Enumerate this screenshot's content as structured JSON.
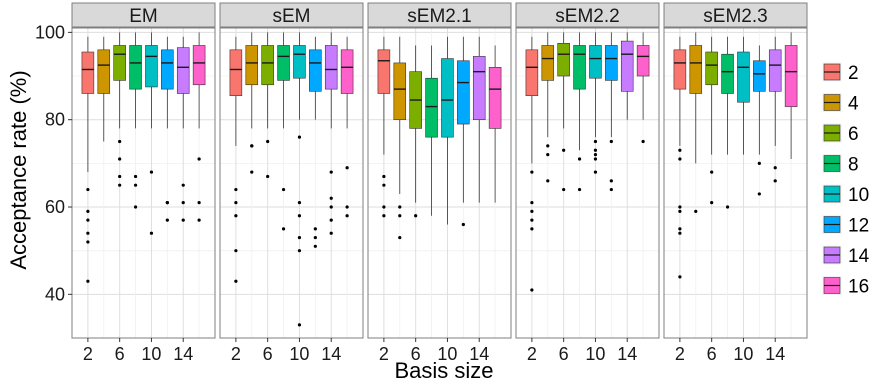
{
  "chart_data": {
    "type": "boxplot",
    "facet_variable": "method",
    "facets": [
      {
        "label": "EM",
        "boxes": [
          {
            "basis": 2,
            "q1": 86,
            "median": 91.5,
            "q3": 95.5,
            "low": 68,
            "high": 99,
            "outliers": [
              64,
              59,
              57,
              54,
              52,
              43
            ]
          },
          {
            "basis": 4,
            "q1": 86,
            "median": 92.5,
            "q3": 96,
            "low": 75,
            "high": 99,
            "outliers": []
          },
          {
            "basis": 6,
            "q1": 89,
            "median": 95,
            "q3": 97,
            "low": 78,
            "high": 100,
            "outliers": [
              75,
              71,
              67,
              65
            ]
          },
          {
            "basis": 8,
            "q1": 87,
            "median": 93,
            "q3": 97,
            "low": 78,
            "high": 100,
            "outliers": [
              67,
              65,
              60
            ]
          },
          {
            "basis": 10,
            "q1": 87.5,
            "median": 94.5,
            "q3": 97,
            "low": 78,
            "high": 100,
            "outliers": [
              68,
              54
            ]
          },
          {
            "basis": 12,
            "q1": 87,
            "median": 93,
            "q3": 96,
            "low": 78,
            "high": 99,
            "outliers": [
              61,
              61,
              57
            ]
          },
          {
            "basis": 14,
            "q1": 86,
            "median": 92,
            "q3": 96.5,
            "low": 78,
            "high": 99,
            "outliers": [
              65,
              61,
              57
            ]
          },
          {
            "basis": 16,
            "q1": 88,
            "median": 93,
            "q3": 97,
            "low": 78,
            "high": 100,
            "outliers": [
              71,
              61,
              57
            ]
          }
        ]
      },
      {
        "label": "sEM",
        "boxes": [
          {
            "basis": 2,
            "q1": 85.5,
            "median": 91.5,
            "q3": 96,
            "low": 74,
            "high": 99,
            "outliers": [
              64,
              61,
              58,
              50,
              43
            ]
          },
          {
            "basis": 4,
            "q1": 88,
            "median": 93,
            "q3": 97,
            "low": 78,
            "high": 100,
            "outliers": [
              74,
              74,
              68
            ]
          },
          {
            "basis": 6,
            "q1": 88,
            "median": 93,
            "q3": 97,
            "low": 78,
            "high": 100,
            "outliers": [
              75,
              67
            ]
          },
          {
            "basis": 8,
            "q1": 89,
            "median": 94.5,
            "q3": 97,
            "low": 78,
            "high": 100,
            "outliers": [
              64,
              55
            ]
          },
          {
            "basis": 10,
            "q1": 89.5,
            "median": 95,
            "q3": 97,
            "low": 80,
            "high": 100,
            "outliers": [
              76,
              61,
              58,
              53,
              50,
              33
            ]
          },
          {
            "basis": 12,
            "q1": 86.5,
            "median": 93,
            "q3": 96,
            "low": 80,
            "high": 99,
            "outliers": [
              55,
              53,
              51
            ]
          },
          {
            "basis": 14,
            "q1": 87,
            "median": 91.5,
            "q3": 97,
            "low": 78,
            "high": 100,
            "outliers": [
              68,
              62,
              60,
              57,
              54
            ]
          },
          {
            "basis": 16,
            "q1": 86,
            "median": 92,
            "q3": 96,
            "low": 78,
            "high": 99,
            "outliers": [
              69,
              60,
              58
            ]
          }
        ]
      },
      {
        "label": "sEM2.1",
        "boxes": [
          {
            "basis": 2,
            "q1": 86,
            "median": 93.5,
            "q3": 96,
            "low": 72,
            "high": 99,
            "outliers": [
              67,
              65,
              60,
              58
            ]
          },
          {
            "basis": 4,
            "q1": 80,
            "median": 87,
            "q3": 93,
            "low": 63,
            "high": 99,
            "outliers": [
              60,
              58,
              53
            ]
          },
          {
            "basis": 6,
            "q1": 78,
            "median": 84.5,
            "q3": 91,
            "low": 61,
            "high": 97,
            "outliers": [
              58
            ]
          },
          {
            "basis": 8,
            "q1": 76,
            "median": 83,
            "q3": 89.5,
            "low": 58,
            "high": 97,
            "outliers": []
          },
          {
            "basis": 10,
            "q1": 76,
            "median": 84.5,
            "q3": 94,
            "low": 56,
            "high": 99,
            "outliers": []
          },
          {
            "basis": 12,
            "q1": 79,
            "median": 88.5,
            "q3": 93.5,
            "low": 61,
            "high": 99,
            "outliers": [
              56
            ]
          },
          {
            "basis": 14,
            "q1": 80,
            "median": 91,
            "q3": 94.5,
            "low": 61,
            "high": 99,
            "outliers": []
          },
          {
            "basis": 16,
            "q1": 78,
            "median": 87,
            "q3": 92,
            "low": 61,
            "high": 97,
            "outliers": []
          }
        ]
      },
      {
        "label": "sEM2.2",
        "boxes": [
          {
            "basis": 2,
            "q1": 85.5,
            "median": 92,
            "q3": 96,
            "low": 70,
            "high": 99,
            "outliers": [
              68,
              61,
              59,
              57,
              55,
              41
            ]
          },
          {
            "basis": 4,
            "q1": 89,
            "median": 94,
            "q3": 97,
            "low": 76,
            "high": 100,
            "outliers": [
              74,
              72,
              66
            ]
          },
          {
            "basis": 6,
            "q1": 90,
            "median": 95,
            "q3": 97.5,
            "low": 78,
            "high": 100,
            "outliers": [
              73,
              64
            ]
          },
          {
            "basis": 8,
            "q1": 87,
            "median": 95,
            "q3": 97,
            "low": 73,
            "high": 100,
            "outliers": [
              71,
              64
            ]
          },
          {
            "basis": 10,
            "q1": 89.5,
            "median": 94,
            "q3": 97,
            "low": 76,
            "high": 100,
            "outliers": [
              75,
              73,
              72,
              71,
              68
            ]
          },
          {
            "basis": 12,
            "q1": 89,
            "median": 94,
            "q3": 97,
            "low": 76,
            "high": 100,
            "outliers": [
              75,
              66,
              64
            ]
          },
          {
            "basis": 14,
            "q1": 86.5,
            "median": 95,
            "q3": 98,
            "low": 80,
            "high": 100,
            "outliers": []
          },
          {
            "basis": 16,
            "q1": 90,
            "median": 94.5,
            "q3": 97,
            "low": 80,
            "high": 100,
            "outliers": [
              75
            ]
          }
        ]
      },
      {
        "label": "sEM2.3",
        "boxes": [
          {
            "basis": 2,
            "q1": 87,
            "median": 93,
            "q3": 96,
            "low": 74,
            "high": 99,
            "outliers": [
              73,
              71,
              60,
              59,
              55,
              54,
              44
            ]
          },
          {
            "basis": 4,
            "q1": 86,
            "median": 93,
            "q3": 97,
            "low": 70,
            "high": 100,
            "outliers": [
              59
            ]
          },
          {
            "basis": 6,
            "q1": 88,
            "median": 92.5,
            "q3": 95.5,
            "low": 72,
            "high": 99,
            "outliers": [
              68,
              61
            ]
          },
          {
            "basis": 8,
            "q1": 86,
            "median": 91,
            "q3": 95,
            "low": 72,
            "high": 99,
            "outliers": [
              60
            ]
          },
          {
            "basis": 10,
            "q1": 84,
            "median": 92,
            "q3": 95.5,
            "low": 72,
            "high": 99,
            "outliers": []
          },
          {
            "basis": 12,
            "q1": 86.5,
            "median": 90.5,
            "q3": 93.5,
            "low": 72,
            "high": 97,
            "outliers": [
              70,
              63
            ]
          },
          {
            "basis": 14,
            "q1": 86.5,
            "median": 92.5,
            "q3": 96,
            "low": 74,
            "high": 99,
            "outliers": [
              69,
              66
            ]
          },
          {
            "basis": 16,
            "q1": 83,
            "median": 91,
            "q3": 97,
            "low": 71,
            "high": 100,
            "outliers": []
          }
        ]
      }
    ],
    "xlabel": "Basis size",
    "ylabel": "Acceptance rate (%)",
    "x_ticks": [
      "2",
      "6",
      "10",
      "14"
    ],
    "x_range": [
      0,
      18
    ],
    "y_ticks": [
      "40",
      "60",
      "80",
      "100"
    ],
    "ylim": [
      30,
      101
    ],
    "grid": true,
    "legend_position": "right",
    "legend": {
      "entries": [
        "2",
        "4",
        "6",
        "8",
        "10",
        "12",
        "14",
        "16"
      ],
      "colors": [
        "#F8766D",
        "#CD9600",
        "#7CAE00",
        "#00BE67",
        "#00BFC4",
        "#00A9FF",
        "#C77CFF",
        "#FF61CC"
      ]
    },
    "panel_background": "#ffffff",
    "strip_background": "#d9d9d9"
  }
}
